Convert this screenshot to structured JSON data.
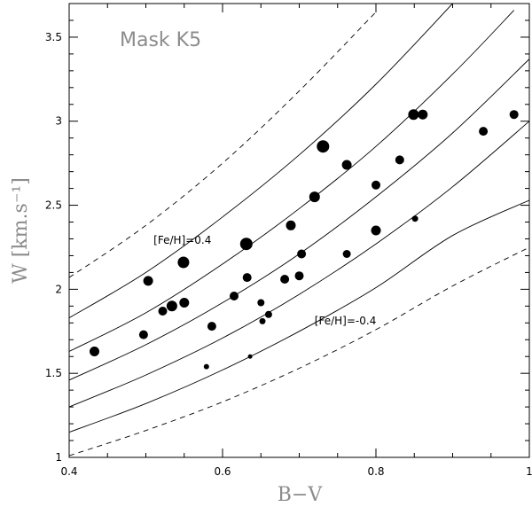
{
  "chart_data": {
    "type": "scatter",
    "title": "Mask K5",
    "xlabel": "B−V",
    "ylabel": "W [km.s⁻¹]",
    "xlim": [
      0.4,
      1.0
    ],
    "ylim": [
      1.0,
      3.7
    ],
    "x_ticks": [
      "0.4",
      "0.6",
      "0.8",
      "1"
    ],
    "y_ticks": [
      "1",
      "1.5",
      "2",
      "2.5",
      "3",
      "3.5"
    ],
    "x_tick_values": [
      0.4,
      0.6,
      0.8,
      1.0
    ],
    "y_tick_values": [
      1.0,
      1.5,
      2.0,
      2.5,
      3.0,
      3.5
    ],
    "grid": false,
    "annotations": [
      {
        "text": "[Fe/H]=0.4",
        "x": 0.51,
        "y": 2.27
      },
      {
        "text": "[Fe/H]=-0.4",
        "x": 0.72,
        "y": 1.79
      }
    ],
    "curves": [
      {
        "style": "dashed",
        "points": [
          [
            0.4,
            2.07
          ],
          [
            0.5,
            2.38
          ],
          [
            0.6,
            2.75
          ],
          [
            0.7,
            3.18
          ],
          [
            0.8,
            3.65
          ]
        ]
      },
      {
        "style": "solid",
        "points": [
          [
            0.4,
            1.83
          ],
          [
            0.5,
            2.1
          ],
          [
            0.6,
            2.43
          ],
          [
            0.7,
            2.8
          ],
          [
            0.8,
            3.22
          ],
          [
            0.9,
            3.7
          ]
        ]
      },
      {
        "style": "solid",
        "points": [
          [
            0.4,
            1.63
          ],
          [
            0.5,
            1.86
          ],
          [
            0.6,
            2.15
          ],
          [
            0.7,
            2.48
          ],
          [
            0.8,
            2.85
          ],
          [
            0.9,
            3.28
          ],
          [
            0.98,
            3.66
          ]
        ]
      },
      {
        "style": "solid",
        "points": [
          [
            0.4,
            1.46
          ],
          [
            0.5,
            1.67
          ],
          [
            0.6,
            1.92
          ],
          [
            0.7,
            2.21
          ],
          [
            0.8,
            2.55
          ],
          [
            0.9,
            2.93
          ],
          [
            1.0,
            3.37
          ]
        ]
      },
      {
        "style": "solid",
        "points": [
          [
            0.4,
            1.3
          ],
          [
            0.5,
            1.49
          ],
          [
            0.6,
            1.71
          ],
          [
            0.7,
            1.97
          ],
          [
            0.8,
            2.27
          ],
          [
            0.9,
            2.61
          ],
          [
            1.0,
            3.0
          ]
        ]
      },
      {
        "style": "solid",
        "points": [
          [
            0.4,
            1.15
          ],
          [
            0.5,
            1.32
          ],
          [
            0.6,
            1.52
          ],
          [
            0.7,
            1.75
          ],
          [
            0.8,
            2.01
          ],
          [
            0.9,
            2.32
          ],
          [
            1.0,
            2.53
          ]
        ]
      },
      {
        "style": "dashed",
        "points": [
          [
            0.4,
            1.01
          ],
          [
            0.5,
            1.16
          ],
          [
            0.6,
            1.33
          ],
          [
            0.7,
            1.53
          ],
          [
            0.8,
            1.76
          ],
          [
            0.9,
            2.02
          ],
          [
            1.0,
            2.25
          ]
        ]
      }
    ],
    "points": [
      {
        "x": 0.433,
        "y": 1.63,
        "size": 5.5
      },
      {
        "x": 0.497,
        "y": 1.73,
        "size": 5
      },
      {
        "x": 0.503,
        "y": 2.05,
        "size": 5.5
      },
      {
        "x": 0.522,
        "y": 1.87,
        "size": 5
      },
      {
        "x": 0.534,
        "y": 1.9,
        "size": 6
      },
      {
        "x": 0.55,
        "y": 1.92,
        "size": 5.5
      },
      {
        "x": 0.549,
        "y": 2.16,
        "size": 6.5
      },
      {
        "x": 0.579,
        "y": 1.54,
        "size": 3
      },
      {
        "x": 0.586,
        "y": 1.78,
        "size": 5
      },
      {
        "x": 0.615,
        "y": 1.96,
        "size": 5
      },
      {
        "x": 0.631,
        "y": 2.27,
        "size": 7
      },
      {
        "x": 0.632,
        "y": 2.07,
        "size": 5
      },
      {
        "x": 0.636,
        "y": 1.6,
        "size": 2.5
      },
      {
        "x": 0.65,
        "y": 1.92,
        "size": 4
      },
      {
        "x": 0.652,
        "y": 1.81,
        "size": 3.5
      },
      {
        "x": 0.66,
        "y": 1.85,
        "size": 4
      },
      {
        "x": 0.681,
        "y": 2.06,
        "size": 5
      },
      {
        "x": 0.689,
        "y": 2.38,
        "size": 5.5
      },
      {
        "x": 0.7,
        "y": 2.08,
        "size": 5
      },
      {
        "x": 0.703,
        "y": 2.21,
        "size": 5
      },
      {
        "x": 0.72,
        "y": 2.55,
        "size": 6
      },
      {
        "x": 0.731,
        "y": 2.85,
        "size": 7
      },
      {
        "x": 0.762,
        "y": 2.74,
        "size": 5.5
      },
      {
        "x": 0.762,
        "y": 2.21,
        "size": 4.5
      },
      {
        "x": 0.8,
        "y": 2.62,
        "size": 5
      },
      {
        "x": 0.8,
        "y": 2.35,
        "size": 5.5
      },
      {
        "x": 0.831,
        "y": 2.77,
        "size": 5
      },
      {
        "x": 0.849,
        "y": 3.04,
        "size": 6
      },
      {
        "x": 0.851,
        "y": 2.42,
        "size": 3.5
      },
      {
        "x": 0.861,
        "y": 3.04,
        "size": 5.5
      },
      {
        "x": 0.94,
        "y": 2.94,
        "size": 5
      },
      {
        "x": 0.98,
        "y": 3.04,
        "size": 5
      }
    ]
  }
}
